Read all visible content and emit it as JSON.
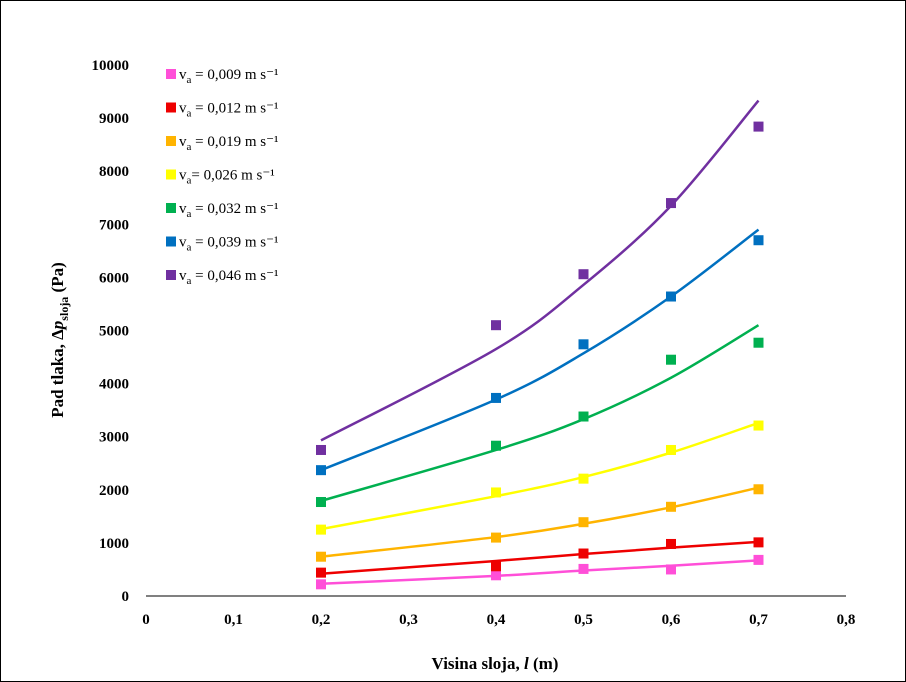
{
  "chart_data": {
    "type": "scatter",
    "xlim": [
      0,
      0.8
    ],
    "ylim": [
      0,
      10000
    ],
    "x_ticks": [
      "0",
      "0,1",
      "0,2",
      "0,3",
      "0,4",
      "0,5",
      "0,6",
      "0,7",
      "0,8"
    ],
    "y_ticks": [
      "0",
      "1000",
      "2000",
      "3000",
      "4000",
      "5000",
      "6000",
      "7000",
      "8000",
      "9000",
      "10000"
    ],
    "xlabel": {
      "main": "Visina sloja, ",
      "var": "l",
      "unit": "  (m)"
    },
    "ylabel": {
      "main": "Pad tlaka, Δ",
      "var": "p",
      "sub": "sloja",
      "unit": "  (Pa)"
    },
    "grid": false,
    "legend_position": "top-left",
    "x": [
      0.2,
      0.4,
      0.5,
      0.6,
      0.7
    ],
    "series": [
      {
        "name": "v",
        "name_sub": "a",
        "name_rest": " = 0,009 m s⁻¹",
        "color": "#ff4fd8",
        "values": [
          220,
          390,
          510,
          500,
          680
        ],
        "fit": [
          230,
          380,
          480,
          570,
          670
        ]
      },
      {
        "name": "v",
        "name_sub": "a",
        "name_rest": " = 0,012 m s⁻¹",
        "color": "#ee0000",
        "values": [
          440,
          560,
          800,
          980,
          1010
        ],
        "fit": [
          420,
          660,
          790,
          910,
          1020
        ]
      },
      {
        "name": "v",
        "name_sub": "a",
        "name_rest": " = 0,019 m s⁻¹",
        "color": "#ffb400",
        "values": [
          740,
          1100,
          1390,
          1680,
          2010
        ],
        "fit": [
          740,
          1110,
          1360,
          1670,
          2040
        ]
      },
      {
        "name": "v",
        "name_sub": "a",
        "name_rest": "= 0,026 m s⁻¹",
        "color": "#ffff00",
        "values": [
          1250,
          1950,
          2210,
          2750,
          3210
        ],
        "fit": [
          1260,
          1880,
          2240,
          2700,
          3260
        ]
      },
      {
        "name": "v",
        "name_sub": "a",
        "name_rest": " = 0,032 m s⁻¹",
        "color": "#00b050",
        "values": [
          1770,
          2830,
          3380,
          4450,
          4770
        ],
        "fit": [
          1790,
          2750,
          3330,
          4110,
          5100
        ]
      },
      {
        "name": "v",
        "name_sub": "a",
        "name_rest": " = 0,039 m s⁻¹",
        "color": "#0070c0",
        "values": [
          2370,
          3730,
          4740,
          5640,
          6700
        ],
        "fit": [
          2370,
          3700,
          4570,
          5640,
          6900
        ]
      },
      {
        "name": "v",
        "name_sub": "a",
        "name_rest": " = 0,046 m s⁻¹",
        "color": "#7030a0",
        "values": [
          2750,
          5100,
          6060,
          7400,
          8840
        ],
        "fit": [
          2930,
          4650,
          5860,
          7350,
          9330
        ]
      }
    ]
  }
}
